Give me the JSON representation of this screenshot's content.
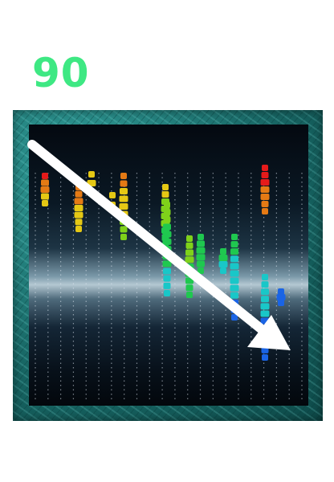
{
  "score": {
    "value": "90",
    "color": "#3ee883"
  },
  "detector_display": {
    "icon": "particle-detector-event-display",
    "string_count": 22,
    "hit_colors_top_to_bottom": [
      "#e51a1a",
      "#e57a14",
      "#e5c814",
      "#7fd21a",
      "#1fc84f",
      "#19c7c8",
      "#1a64e5"
    ],
    "arrow": {
      "icon": "direction-arrow-icon",
      "direction": "down-right",
      "color": "#ffffff"
    }
  }
}
